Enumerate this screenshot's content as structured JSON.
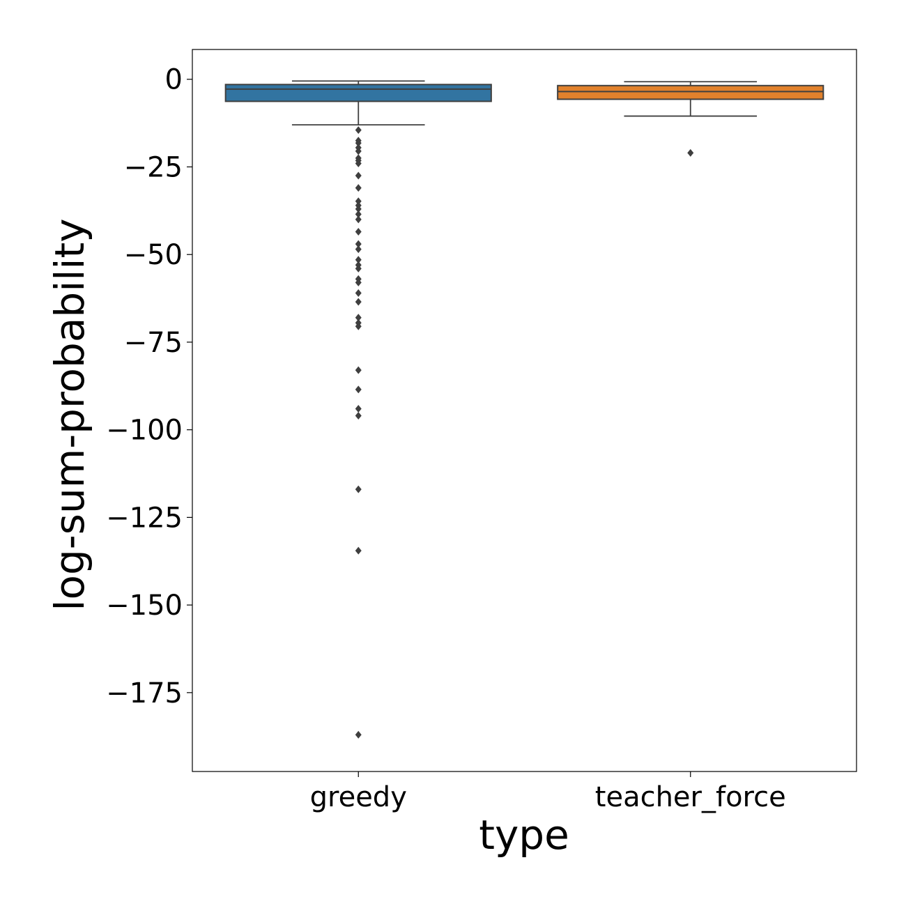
{
  "chart_data": {
    "type": "box",
    "xlabel": "type",
    "ylabel": "log-sum-probability",
    "categories": [
      "greedy",
      "teacher_force"
    ],
    "ylim": [
      -197.5,
      8.5
    ],
    "yticks": [
      0,
      -25,
      -50,
      -75,
      -100,
      -125,
      -150,
      -175
    ],
    "ytick_labels": [
      "0",
      "−25",
      "−50",
      "−75",
      "−100",
      "−125",
      "−150",
      "−175"
    ],
    "grid": false,
    "legend": "none",
    "boxes": [
      {
        "category": "greedy",
        "color": "#3274a1",
        "whisker_high": -0.5,
        "q3": -1.5,
        "median": -2.8,
        "q1": -6.3,
        "whisker_low": -13.0,
        "outliers": [
          -14.5,
          -17.5,
          -18.2,
          -19.5,
          -20.5,
          -22.5,
          -23.2,
          -24.0,
          -27.5,
          -31.0,
          -34.8,
          -36.0,
          -37.0,
          -38.5,
          -40.0,
          -43.5,
          -47.0,
          -48.5,
          -51.5,
          -53.0,
          -54.0,
          -57.0,
          -58.0,
          -61.0,
          -63.5,
          -68.0,
          -69.5,
          -70.5,
          -83.0,
          -88.5,
          -94.0,
          -96.0,
          -117.0,
          -134.5,
          -187.0
        ]
      },
      {
        "category": "teacher_force",
        "color": "#e1812c",
        "whisker_high": -0.7,
        "q3": -1.8,
        "median": -3.5,
        "q1": -5.7,
        "whisker_low": -10.5,
        "outliers": [
          -21.0
        ]
      }
    ]
  }
}
